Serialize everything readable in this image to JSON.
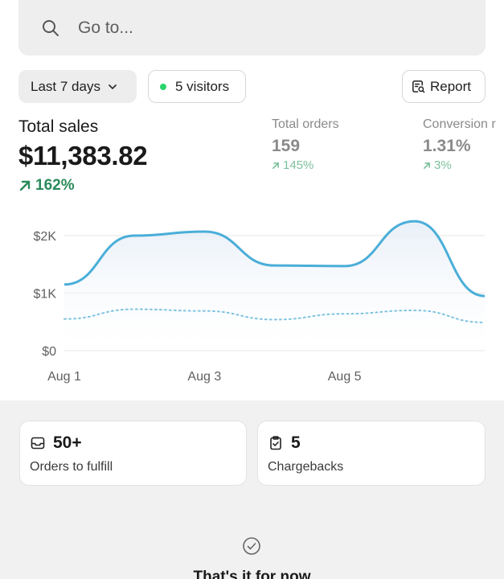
{
  "search": {
    "placeholder": "Go to...",
    "icon": "search-icon"
  },
  "filters": {
    "date_range": "Last 7 days",
    "visitors": "5 visitors",
    "report": "Report"
  },
  "metrics": {
    "total_sales": {
      "label": "Total sales",
      "value": "$11,383.82",
      "delta": "162%"
    },
    "total_orders": {
      "label": "Total orders",
      "value": "159",
      "delta": "145%"
    },
    "conversion": {
      "label": "Conversion r",
      "value": "1.31%",
      "delta": "3%"
    }
  },
  "colors": {
    "accent_line": "#4aaed8",
    "positive": "#2a8a5a",
    "live_dot": "#2bd46b"
  },
  "chart_data": {
    "type": "line",
    "yticks": [
      "$2K",
      "$1K",
      "$0"
    ],
    "xticks": [
      "Aug 1",
      "Aug 3",
      "Aug 5"
    ],
    "ylim": [
      0,
      2000
    ],
    "grid": true,
    "series": [
      {
        "style": "solid",
        "x": [
          0,
          1,
          2,
          3,
          4,
          5,
          6
        ],
        "values": [
          1150,
          2000,
          2070,
          1480,
          1470,
          2250,
          950
        ]
      },
      {
        "style": "dotted",
        "x": [
          0,
          1,
          2,
          3,
          4,
          5,
          6
        ],
        "values": [
          550,
          720,
          690,
          540,
          640,
          700,
          490
        ]
      }
    ]
  },
  "cards": [
    {
      "icon": "inbox-icon",
      "value": "50+",
      "label": "Orders to fulfill"
    },
    {
      "icon": "clipboard-check-icon",
      "value": "5",
      "label": "Chargebacks"
    }
  ],
  "footer": {
    "message": "That's it for now",
    "icon": "check-circle-icon"
  }
}
